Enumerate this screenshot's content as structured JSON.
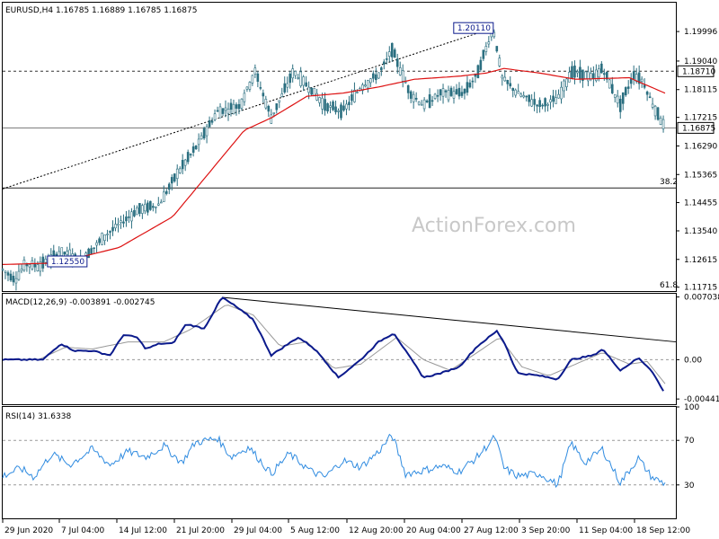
{
  "header": {
    "symbol_line": "EURUSD,H4  1.16785 1.16889 1.16785 1.16875"
  },
  "watermark": "ActionForex.com",
  "colors": {
    "candle": "#2b6f80",
    "ma": "#dd1111",
    "macd": "#0b1a8c",
    "signal": "#999999",
    "rsi": "#2f8be0",
    "trend": "#000000",
    "panel_border": "#000000",
    "level_line": "#777777"
  },
  "chart_data": [
    {
      "panel": "price",
      "type": "candlestick",
      "title": "EURUSD,H4  1.16785 1.16889 1.16785 1.16875",
      "ylim": [
        1.1159,
        1.2093
      ],
      "y_ticks": [
        "1.19996",
        "1.19040",
        "1.18115",
        "1.17215",
        "1.16290",
        "1.15365",
        "1.14455",
        "1.13540",
        "1.12615",
        "1.11715"
      ],
      "y_tick_values": [
        1.19996,
        1.1904,
        1.18115,
        1.17215,
        1.1629,
        1.15365,
        1.14455,
        1.1354,
        1.12615,
        1.11715
      ],
      "price_path_keypoints": [
        [
          0,
          1.1229
        ],
        [
          14,
          1.1195
        ],
        [
          25,
          1.1246
        ],
        [
          40,
          1.124
        ],
        [
          65,
          1.1285
        ],
        [
          90,
          1.1264
        ],
        [
          115,
          1.134
        ],
        [
          150,
          1.142
        ],
        [
          175,
          1.144
        ],
        [
          195,
          1.154
        ],
        [
          215,
          1.162
        ],
        [
          240,
          1.174
        ],
        [
          265,
          1.176
        ],
        [
          282,
          1.187
        ],
        [
          300,
          1.172
        ],
        [
          325,
          1.187
        ],
        [
          345,
          1.181
        ],
        [
          360,
          1.176
        ],
        [
          380,
          1.174
        ],
        [
          400,
          1.182
        ],
        [
          420,
          1.186
        ],
        [
          435,
          1.194
        ],
        [
          455,
          1.18
        ],
        [
          470,
          1.176
        ],
        [
          490,
          1.18
        ],
        [
          515,
          1.18
        ],
        [
          530,
          1.186
        ],
        [
          548,
          1.2011
        ],
        [
          558,
          1.185
        ],
        [
          575,
          1.18
        ],
        [
          600,
          1.176
        ],
        [
          620,
          1.178
        ],
        [
          635,
          1.187
        ],
        [
          660,
          1.185
        ],
        [
          670,
          1.188
        ],
        [
          690,
          1.176
        ],
        [
          705,
          1.186
        ],
        [
          715,
          1.184
        ],
        [
          725,
          1.177
        ],
        [
          740,
          1.1688
        ]
      ],
      "ma_keypoints": [
        [
          0,
          1.1245
        ],
        [
          60,
          1.125
        ],
        [
          130,
          1.13
        ],
        [
          190,
          1.14
        ],
        [
          230,
          1.154
        ],
        [
          270,
          1.168
        ],
        [
          300,
          1.172
        ],
        [
          340,
          1.179
        ],
        [
          380,
          1.18
        ],
        [
          420,
          1.182
        ],
        [
          460,
          1.1845
        ],
        [
          510,
          1.1855
        ],
        [
          540,
          1.1865
        ],
        [
          560,
          1.188
        ],
        [
          600,
          1.1865
        ],
        [
          640,
          1.1845
        ],
        [
          700,
          1.185
        ],
        [
          740,
          1.18
        ]
      ],
      "horizontal_levels": [
        {
          "value": 1.1871,
          "label": "1.18710",
          "style": "dashed"
        },
        {
          "value": 1.16875,
          "label": "1.16875",
          "style": "solid"
        },
        {
          "value": 1.1493,
          "label": "38.2",
          "style": "solid"
        }
      ],
      "fib_bottom_label": "61.8",
      "trendline": {
        "from": [
          0,
          1.149
        ],
        "to": [
          548,
          1.2011
        ],
        "style": "dotted"
      },
      "annotations": [
        {
          "text": "1.20110",
          "x": 548,
          "value": 1.2011
        },
        {
          "text": "1.12550",
          "x": 40,
          "value": 1.1255
        }
      ]
    },
    {
      "panel": "macd",
      "type": "line",
      "title": "MACD(12,26,9) -0.003891 -0.002745",
      "ylim": [
        -0.005,
        0.0074
      ],
      "y_ticks": [
        "0.007038",
        "0.00",
        "-0.004411"
      ],
      "y_tick_values": [
        0.007038,
        0.0,
        -0.004411
      ],
      "macd_keypoints": [
        [
          0,
          0.0
        ],
        [
          30,
          0.0
        ],
        [
          45,
          0.0
        ],
        [
          65,
          0.0018
        ],
        [
          80,
          0.001
        ],
        [
          100,
          0.001
        ],
        [
          120,
          0.0005
        ],
        [
          135,
          0.0028
        ],
        [
          150,
          0.0025
        ],
        [
          160,
          0.0012
        ],
        [
          175,
          0.0018
        ],
        [
          190,
          0.0018
        ],
        [
          205,
          0.004
        ],
        [
          225,
          0.0035
        ],
        [
          245,
          0.007
        ],
        [
          260,
          0.006
        ],
        [
          280,
          0.0045
        ],
        [
          300,
          0.0005
        ],
        [
          315,
          0.0015
        ],
        [
          330,
          0.0025
        ],
        [
          345,
          0.0015
        ],
        [
          355,
          0.0005
        ],
        [
          375,
          -0.002
        ],
        [
          400,
          0.0
        ],
        [
          420,
          0.002
        ],
        [
          437,
          0.003
        ],
        [
          450,
          0.001
        ],
        [
          470,
          -0.002
        ],
        [
          490,
          -0.0015
        ],
        [
          510,
          -0.0008
        ],
        [
          530,
          0.0015
        ],
        [
          552,
          0.0032
        ],
        [
          560,
          0.002
        ],
        [
          575,
          -0.0015
        ],
        [
          600,
          -0.0018
        ],
        [
          620,
          -0.0022
        ],
        [
          635,
          0.0
        ],
        [
          660,
          0.0005
        ],
        [
          670,
          0.0012
        ],
        [
          690,
          -0.0012
        ],
        [
          710,
          0.0002
        ],
        [
          725,
          -0.0012
        ],
        [
          740,
          -0.0039
        ]
      ],
      "signal_keypoints": [
        [
          0,
          0.0
        ],
        [
          40,
          0.0
        ],
        [
          70,
          0.0014
        ],
        [
          100,
          0.0012
        ],
        [
          140,
          0.002
        ],
        [
          180,
          0.002
        ],
        [
          210,
          0.0034
        ],
        [
          250,
          0.0062
        ],
        [
          280,
          0.005
        ],
        [
          310,
          0.0015
        ],
        [
          340,
          0.002
        ],
        [
          370,
          -0.001
        ],
        [
          400,
          -0.0005
        ],
        [
          440,
          0.0025
        ],
        [
          470,
          0.0
        ],
        [
          500,
          -0.0012
        ],
        [
          530,
          0.0008
        ],
        [
          555,
          0.0025
        ],
        [
          580,
          -0.0008
        ],
        [
          610,
          -0.0018
        ],
        [
          640,
          -0.0005
        ],
        [
          670,
          0.0008
        ],
        [
          700,
          -0.0005
        ],
        [
          720,
          -0.0002
        ],
        [
          740,
          -0.0027
        ]
      ],
      "trendline": {
        "from": [
          245,
          0.007
        ],
        "to": [
          752,
          0.002
        ],
        "style": "solid"
      }
    },
    {
      "panel": "rsi",
      "type": "line",
      "title": "RSI(14) 31.6338",
      "ylim": [
        0,
        100
      ],
      "y_ticks": [
        "100",
        "70",
        "30"
      ],
      "y_tick_values": [
        100,
        70,
        30
      ],
      "rsi_keypoints": [
        [
          0,
          38
        ],
        [
          20,
          45
        ],
        [
          35,
          37
        ],
        [
          55,
          58
        ],
        [
          75,
          48
        ],
        [
          100,
          62
        ],
        [
          120,
          48
        ],
        [
          140,
          60
        ],
        [
          160,
          55
        ],
        [
          180,
          65
        ],
        [
          200,
          50
        ],
        [
          215,
          68
        ],
        [
          240,
          72
        ],
        [
          255,
          55
        ],
        [
          275,
          64
        ],
        [
          300,
          40
        ],
        [
          320,
          58
        ],
        [
          345,
          42
        ],
        [
          360,
          37
        ],
        [
          380,
          52
        ],
        [
          400,
          46
        ],
        [
          420,
          60
        ],
        [
          435,
          75
        ],
        [
          450,
          40
        ],
        [
          470,
          43
        ],
        [
          490,
          47
        ],
        [
          510,
          42
        ],
        [
          530,
          55
        ],
        [
          550,
          73
        ],
        [
          560,
          45
        ],
        [
          575,
          38
        ],
        [
          600,
          40
        ],
        [
          620,
          30
        ],
        [
          635,
          68
        ],
        [
          650,
          50
        ],
        [
          670,
          62
        ],
        [
          690,
          32
        ],
        [
          710,
          54
        ],
        [
          725,
          37
        ],
        [
          740,
          31
        ]
      ]
    }
  ],
  "x_axis": {
    "labels": [
      "29 Jun 2020",
      "7 Jul 04:00",
      "14 Jul 12:00",
      "21 Jul 20:00",
      "29 Jul 04:00",
      "5 Aug 12:00",
      "12 Aug 20:00",
      "20 Aug 04:00",
      "27 Aug 12:00",
      "3 Sep 20:00",
      "11 Sep 04:00",
      "18 Sep 12:00"
    ]
  }
}
